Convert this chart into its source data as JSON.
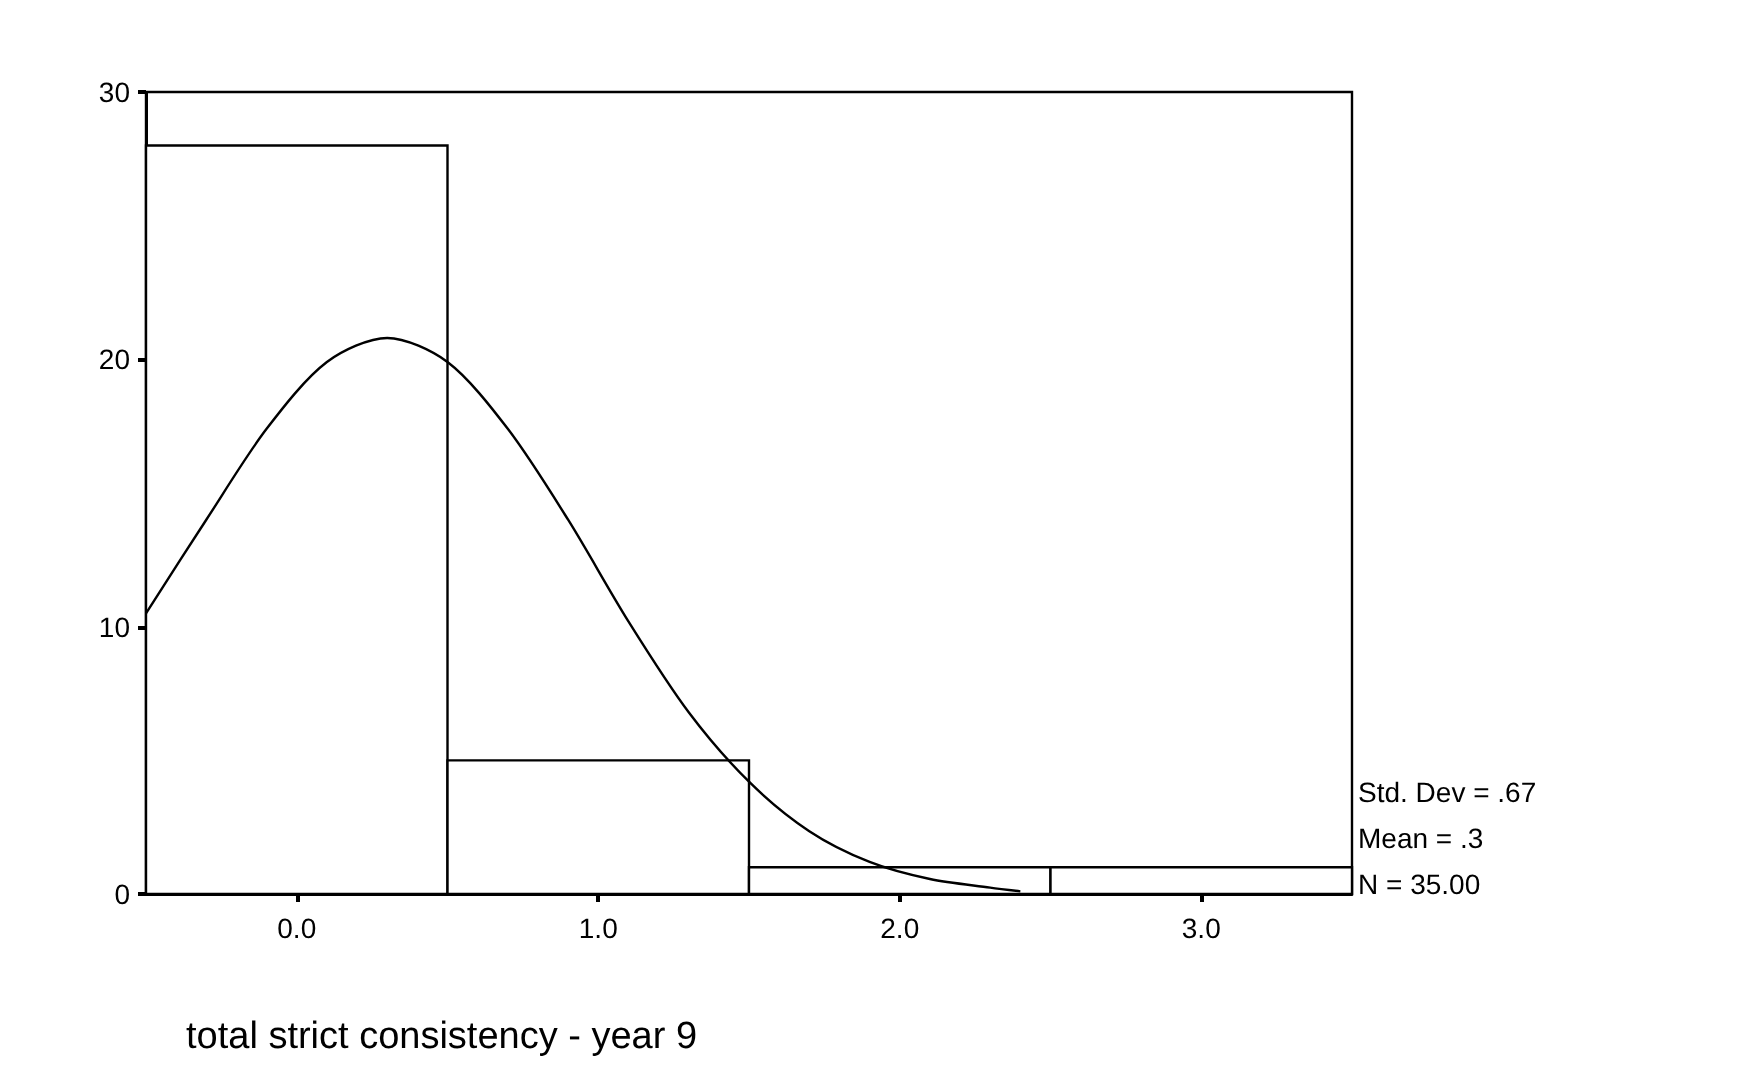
{
  "chart_data": {
    "type": "histogram",
    "xlabel": "total strict consistency - year 9",
    "bins": [
      -0.5,
      0.5,
      1.5,
      2.5,
      3.5
    ],
    "values": [
      28,
      5,
      1,
      1
    ],
    "color": "#ffffff",
    "series": [
      {
        "type": "line",
        "color": "#000000",
        "x": [
          -0.5,
          -0.3,
          -0.1,
          0.1,
          0.3,
          0.5,
          0.7,
          0.9,
          1.1,
          1.3,
          1.5,
          1.7,
          1.9,
          2.1,
          2.3,
          2.4
        ],
        "values": [
          10.5,
          14.0,
          17.4,
          19.9,
          20.8,
          19.9,
          17.4,
          14.0,
          10.2,
          6.8,
          4.2,
          2.35,
          1.2,
          0.56,
          0.24,
          0.1
        ]
      }
    ],
    "xlim": [
      -0.5,
      3.5
    ],
    "xticks": [
      {
        "value": 0,
        "label": "0.0"
      },
      {
        "value": 1,
        "label": "1.0"
      },
      {
        "value": 2,
        "label": "2.0"
      },
      {
        "value": 3,
        "label": "3.0"
      }
    ],
    "ylim": [
      0,
      30
    ],
    "yticks": [
      0,
      10,
      20,
      30
    ],
    "annotations": [
      "Std. Dev = .67",
      "Mean = .3",
      "N = 35.00"
    ],
    "grid": false,
    "marker": "none",
    "line_style": "solid"
  }
}
